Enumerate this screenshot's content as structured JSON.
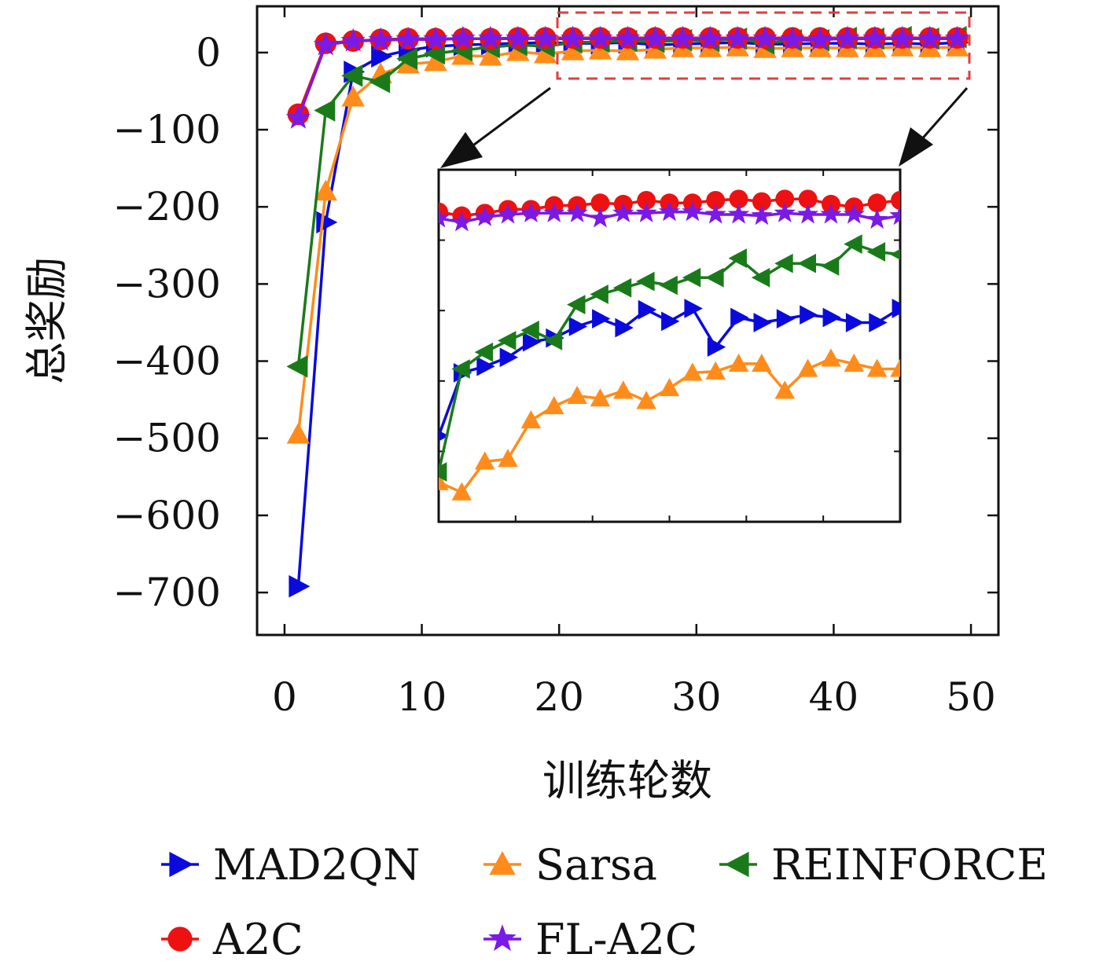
{
  "chart_data": {
    "type": "line",
    "xlabel": "训练轮数",
    "ylabel": "总奖励",
    "xlim": [
      -2,
      52
    ],
    "ylim": [
      -755,
      60
    ],
    "xticks": [
      0,
      10,
      20,
      30,
      40,
      50
    ],
    "yticks": [
      0,
      -100,
      -200,
      -300,
      -400,
      -500,
      -600,
      -700
    ],
    "ytick_labels": [
      "0",
      "−100",
      "−200",
      "−300",
      "−400",
      "−500",
      "−600",
      "−700"
    ],
    "grid": false,
    "legend_position": "bottom",
    "x": [
      1,
      3,
      5,
      7,
      9,
      11,
      13,
      15,
      17,
      19,
      21,
      23,
      25,
      27,
      29,
      31,
      33,
      35,
      37,
      39,
      41,
      43,
      45,
      47,
      49
    ],
    "series": [
      {
        "name": "MAD2QN",
        "color": "#0a0adf",
        "marker": "triangle-right",
        "values": [
          -692,
          -220,
          -25,
          -5,
          3,
          8,
          10,
          11,
          12,
          13,
          12,
          12,
          13,
          10,
          11,
          12,
          13,
          11,
          11,
          12,
          12,
          11,
          12,
          11,
          13
        ]
      },
      {
        "name": "Sarsa",
        "color": "#ff8c1a",
        "marker": "triangle-up",
        "values": [
          -495,
          -180,
          -58,
          -28,
          -15,
          -12,
          -4,
          -5,
          1,
          -2,
          2,
          3,
          2,
          4,
          6,
          6,
          7,
          5,
          6,
          6,
          6,
          6,
          7,
          6,
          7
        ]
      },
      {
        "name": "REINFORCE",
        "color": "#1a7a1a",
        "marker": "triangle-left",
        "values": [
          -407,
          -75,
          -30,
          -38,
          -8,
          -1,
          3,
          7,
          10,
          8,
          13,
          14,
          15,
          14,
          16,
          15,
          18,
          12,
          16,
          16,
          19,
          18,
          20,
          18,
          20
        ]
      },
      {
        "name": "A2C",
        "color": "#ee1111",
        "marker": "circle",
        "values": [
          -80,
          12,
          15,
          17,
          18,
          18,
          18,
          18,
          19,
          19,
          19,
          19,
          19,
          19,
          19,
          19,
          19,
          19,
          19,
          19,
          19,
          19,
          19,
          19,
          19
        ]
      },
      {
        "name": "FL-A2C",
        "color": "#7a1ae6",
        "marker": "star",
        "values": [
          -85,
          10,
          15,
          16,
          17,
          17,
          18,
          18,
          18,
          18,
          18,
          18,
          18,
          18,
          18,
          18,
          18,
          18,
          17,
          17,
          18,
          18,
          18,
          18,
          18
        ]
      }
    ],
    "inset": {
      "xlim": [
        20,
        50
      ],
      "x": [
        20,
        21.5,
        23,
        24.5,
        26,
        27.5,
        29,
        30.5,
        32,
        33.5,
        35,
        36.5,
        38,
        39.5,
        41,
        42.5,
        44,
        45.5,
        47,
        48.5,
        50
      ],
      "series": [
        {
          "name": "MAD2QN",
          "values": [
            4.2,
            9.1,
            9.6,
            10.3,
            11.5,
            11.8,
            12.7,
            13.3,
            12.6,
            14,
            13.1,
            14.1,
            11.1,
            13.4,
            13,
            13.3,
            13.6,
            13.4,
            13,
            13,
            14.1
          ]
        },
        {
          "name": "Sarsa",
          "values": [
            0.6,
            -0.2,
            2.2,
            2.4,
            5.4,
            6.5,
            7.3,
            7.1,
            7.7,
            6.9,
            7.9,
            9.1,
            9.2,
            9.8,
            9.8,
            7.7,
            9.4,
            10.2,
            9.8,
            9.4,
            9.4
          ]
        },
        {
          "name": "REINFORCE",
          "values": [
            1.4,
            9.4,
            10.7,
            11.6,
            12.4,
            11.6,
            14.4,
            15.2,
            15.7,
            16.2,
            15.9,
            16.5,
            16.5,
            18,
            16.5,
            17.6,
            17.6,
            17.4,
            19.1,
            18.5,
            18.3
          ]
        },
        {
          "name": "A2C",
          "values": [
            21.6,
            21.3,
            21.5,
            21.8,
            21.8,
            22.1,
            22.1,
            22.3,
            22.2,
            22.5,
            22.3,
            22.3,
            22.5,
            22.6,
            22.4,
            22.6,
            22.6,
            22.2,
            22,
            22.3,
            22.5
          ]
        },
        {
          "name": "FL-A2C",
          "values": [
            21.1,
            20.8,
            21.2,
            21.4,
            21.5,
            21.5,
            21.5,
            21.1,
            21.5,
            21.5,
            21.6,
            21.6,
            21.4,
            21.4,
            21.3,
            21.5,
            21.4,
            21.4,
            21.4,
            21,
            21.3
          ]
        }
      ]
    }
  }
}
